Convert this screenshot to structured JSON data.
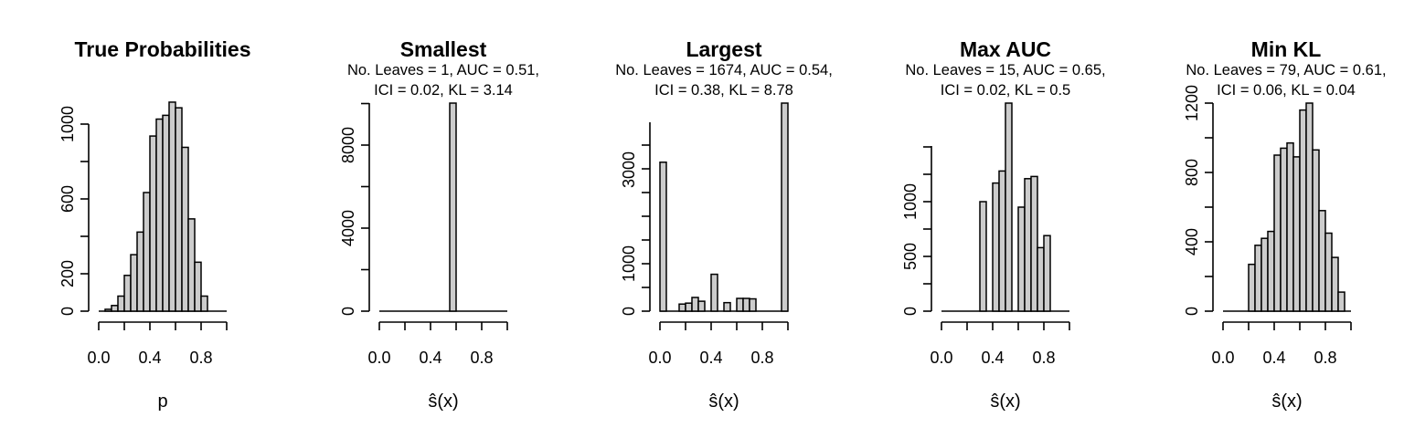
{
  "chart_data": [
    {
      "type": "bar",
      "title": "True Probabilities",
      "subtitle": [],
      "xlabel": "p",
      "xlim": [
        0,
        1
      ],
      "ylim": [
        0,
        1100
      ],
      "xticks": [
        "0.0",
        "0.4",
        "0.8"
      ],
      "yticks": [
        "0",
        "200",
        "600",
        "1000"
      ],
      "bin_starts": [
        0,
        0.05,
        0.1,
        0.15,
        0.2,
        0.25,
        0.3,
        0.35,
        0.4,
        0.45,
        0.5,
        0.55,
        0.6,
        0.65,
        0.7,
        0.75,
        0.8,
        0.85,
        0.9,
        0.95
      ],
      "bin_width": 0.05,
      "values": [
        0,
        10,
        30,
        80,
        190,
        300,
        420,
        630,
        930,
        1020,
        1040,
        1110,
        1080,
        870,
        490,
        260,
        80,
        0,
        0,
        0
      ]
    },
    {
      "type": "bar",
      "title": "Smallest",
      "subtitle": [
        "No. Leaves = 1, AUC = 0.51,",
        "ICI = 0.02, KL = 3.14"
      ],
      "xlabel": "ŝ(x)",
      "xlim": [
        0,
        1
      ],
      "ylim": [
        0,
        10000
      ],
      "xticks": [
        "0.0",
        "0.4",
        "0.8"
      ],
      "yticks": [
        "0",
        "4000",
        "8000"
      ],
      "bin_starts": [
        0.55
      ],
      "bin_width": 0.05,
      "values": [
        10000
      ]
    },
    {
      "type": "bar",
      "title": "Largest",
      "subtitle": [
        "No. Leaves = 1674, AUC = 0.54,",
        "ICI = 0.38, KL = 8.78"
      ],
      "xlabel": "ŝ(x)",
      "xlim": [
        0,
        1
      ],
      "ylim": [
        0,
        4400
      ],
      "xticks": [
        "0.0",
        "0.4",
        "0.8"
      ],
      "yticks": [
        "0",
        "1000",
        "3000"
      ],
      "bin_starts": [
        0,
        0.05,
        0.1,
        0.15,
        0.2,
        0.25,
        0.3,
        0.35,
        0.4,
        0.45,
        0.5,
        0.55,
        0.6,
        0.65,
        0.7,
        0.75,
        0.8,
        0.85,
        0.9,
        0.95
      ],
      "bin_width": 0.05,
      "values": [
        3150,
        0,
        0,
        150,
        170,
        290,
        210,
        0,
        780,
        0,
        180,
        0,
        270,
        270,
        260,
        0,
        0,
        0,
        0,
        4400
      ]
    },
    {
      "type": "bar",
      "title": "Max AUC",
      "subtitle": [
        "No. Leaves = 15, AUC = 0.65,",
        "ICI = 0.02, KL = 0.5"
      ],
      "xlabel": "ŝ(x)",
      "xlim": [
        0,
        1
      ],
      "ylim": [
        0,
        1900
      ],
      "xticks": [
        "0.0",
        "0.4",
        "0.8"
      ],
      "yticks": [
        "0",
        "500",
        "1000"
      ],
      "bin_starts": [
        0,
        0.05,
        0.1,
        0.15,
        0.2,
        0.25,
        0.3,
        0.35,
        0.4,
        0.45,
        0.5,
        0.55,
        0.6,
        0.65,
        0.7,
        0.75,
        0.8,
        0.85,
        0.9,
        0.95
      ],
      "bin_width": 0.05,
      "values": [
        0,
        0,
        0,
        0,
        0,
        0,
        1000,
        0,
        1170,
        1280,
        1900,
        0,
        950,
        1210,
        1230,
        580,
        690,
        0,
        0,
        0
      ]
    },
    {
      "type": "bar",
      "title": "Min KL",
      "subtitle": [
        "No. Leaves = 79, AUC = 0.61,",
        "ICI = 0.06, KL = 0.04"
      ],
      "xlabel": "ŝ(x)",
      "xlim": [
        0,
        1
      ],
      "ylim": [
        0,
        1200
      ],
      "xticks": [
        "0.0",
        "0.4",
        "0.8"
      ],
      "yticks": [
        "0",
        "400",
        "800",
        "1200"
      ],
      "bin_starts": [
        0,
        0.05,
        0.1,
        0.15,
        0.2,
        0.25,
        0.3,
        0.35,
        0.4,
        0.45,
        0.5,
        0.55,
        0.6,
        0.65,
        0.7,
        0.75,
        0.8,
        0.85,
        0.9,
        0.95
      ],
      "bin_width": 0.05,
      "values": [
        0,
        0,
        0,
        0,
        270,
        380,
        420,
        460,
        900,
        940,
        970,
        890,
        1160,
        1200,
        930,
        580,
        450,
        310,
        110,
        0
      ]
    }
  ]
}
